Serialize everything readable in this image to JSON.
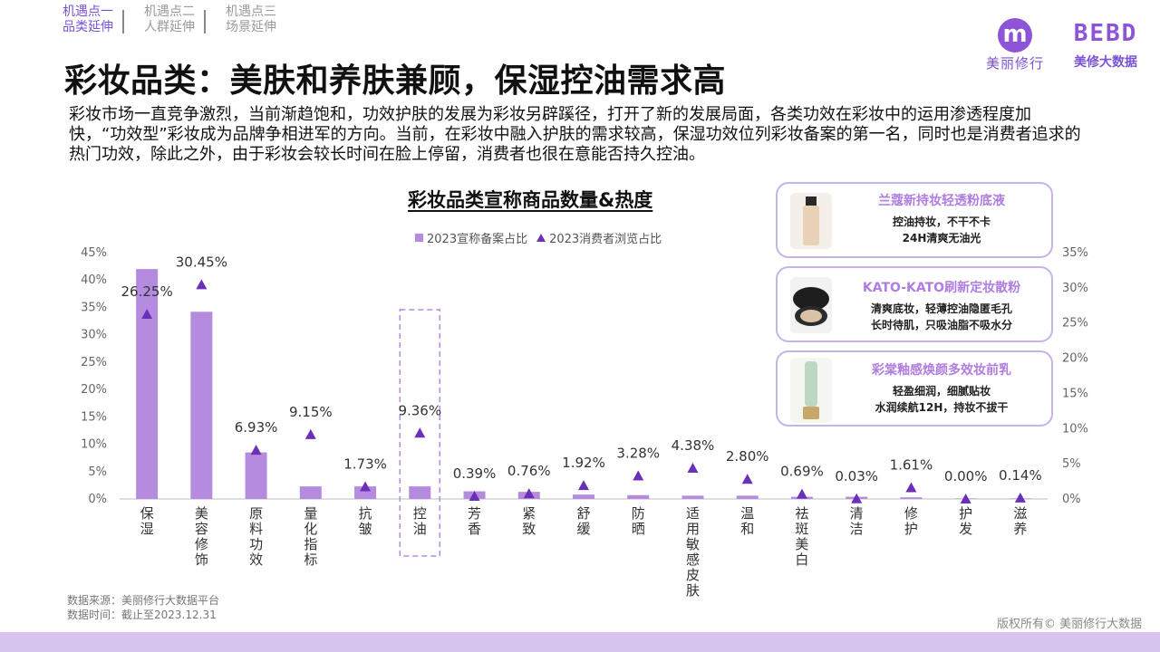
{
  "nav": {
    "items": [
      {
        "line1": "机遇点一",
        "line2": "品类延伸"
      },
      {
        "line1": "机遇点二",
        "line2": "人群延伸"
      },
      {
        "line1": "机遇点三",
        "line2": "场景延伸"
      }
    ]
  },
  "logos": {
    "logo1_letter": "m",
    "logo1_name": "美丽修行",
    "logo2_mark": "BEBD",
    "logo2_name": "美修大数据"
  },
  "title": "彩妆品类：美肤和养肤兼顾，保湿控油需求高",
  "paragraph": "彩妆市场一直竞争激烈，当前渐趋饱和，功效护肤的发展为彩妆另辟蹊径，打开了新的发展局面，各类功效在彩妆中的运用渗透程度加快，“功效型”彩妆成为品牌争相进军的方向。当前，在彩妆中融入护肤的需求较高，保湿功效位列彩妆备案的第一名，同时也是消费者追求的热门功效，除此之外，由于彩妆会较长时间在脸上停留，消费者也很在意能否持久控油。",
  "cards": [
    {
      "title": "兰蔻新持妆轻透粉底液",
      "line1": "控油持妆，不干不卡",
      "line2": "24H清爽无油光",
      "icon": "foundation-bottle-icon"
    },
    {
      "title": "KATO-KATO刷新定妆散粉",
      "line1": "清爽底妆，轻薄控油隐匿毛孔",
      "line2": "长时待肌，只吸油脂不吸水分",
      "icon": "powder-compact-icon"
    },
    {
      "title": "彩棠釉感焕颜多效妆前乳",
      "line1": "轻盈细润，细腻贴妆",
      "line2": "水润续航12H，持妆不拔干",
      "icon": "primer-tube-icon"
    }
  ],
  "chart_data": {
    "type": "bar",
    "title": "彩妆品类宣称商品数量&热度",
    "categories": [
      "保湿",
      "美容修饰",
      "原料功效",
      "量化指标",
      "抗皱",
      "控油",
      "芳香",
      "紧致",
      "舒缓",
      "防晒",
      "适用敏感皮肤",
      "温和",
      "祛斑美白",
      "清洁",
      "修护",
      "护发",
      "滋养"
    ],
    "highlight_category": "控油",
    "series": [
      {
        "name": "2023宣称备案占比",
        "kind": "bar",
        "axis": "left",
        "values": [
          42.0,
          34.2,
          8.5,
          2.3,
          2.3,
          2.3,
          1.4,
          1.3,
          0.8,
          0.7,
          0.6,
          0.6,
          0.4,
          0.4,
          0.3,
          0.1,
          0.1
        ],
        "color": "#b58be0"
      },
      {
        "name": "2023消费者浏览占比",
        "kind": "marker",
        "axis": "right",
        "values": [
          26.25,
          30.45,
          6.93,
          9.15,
          1.73,
          9.36,
          0.39,
          0.76,
          1.92,
          3.28,
          4.38,
          2.8,
          0.69,
          0.03,
          1.61,
          0.0,
          0.14
        ],
        "labels": [
          "26.25%",
          "30.45%",
          "6.93%",
          "9.15%",
          "1.73%",
          "9.36%",
          "0.39%",
          "0.76%",
          "1.92%",
          "3.28%",
          "4.38%",
          "2.80%",
          "0.69%",
          "0.03%",
          "1.61%",
          "0.00%",
          "0.14%"
        ],
        "color": "#6b2fb8"
      }
    ],
    "y_left": {
      "min": 0,
      "max": 45,
      "ticks": [
        "0%",
        "5%",
        "10%",
        "15%",
        "20%",
        "25%",
        "30%",
        "35%",
        "40%",
        "45%"
      ]
    },
    "y_right": {
      "min": 0,
      "max": 35,
      "ticks": [
        "0%",
        "5%",
        "10%",
        "15%",
        "20%",
        "25%",
        "30%",
        "35%"
      ]
    },
    "grid": false,
    "legend": "top"
  },
  "source": {
    "line1": "数据来源：美丽修行大数据平台",
    "line2": "数据时间：截止至2023.12.31"
  },
  "copyright": "版权所有© 美丽修行大数据"
}
